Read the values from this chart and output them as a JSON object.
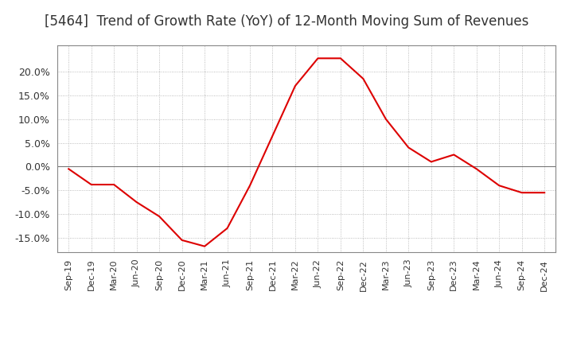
{
  "title": "[5464]  Trend of Growth Rate (YoY) of 12-Month Moving Sum of Revenues",
  "title_fontsize": 12,
  "line_color": "#dd0000",
  "background_color": "#ffffff",
  "grid_color": "#aaaaaa",
  "ylim": [
    -0.18,
    0.255
  ],
  "yticks": [
    -0.15,
    -0.1,
    -0.05,
    0.0,
    0.05,
    0.1,
    0.15,
    0.2
  ],
  "x_labels": [
    "Sep-19",
    "Dec-19",
    "Mar-20",
    "Jun-20",
    "Sep-20",
    "Dec-20",
    "Mar-21",
    "Jun-21",
    "Sep-21",
    "Dec-21",
    "Mar-22",
    "Jun-22",
    "Sep-22",
    "Dec-22",
    "Mar-23",
    "Jun-23",
    "Sep-23",
    "Dec-23",
    "Mar-24",
    "Jun-24",
    "Sep-24",
    "Dec-24"
  ],
  "y_values": [
    -0.005,
    -0.038,
    -0.038,
    -0.075,
    -0.105,
    -0.155,
    -0.168,
    -0.13,
    -0.04,
    0.065,
    0.17,
    0.228,
    0.228,
    0.185,
    0.1,
    0.04,
    0.01,
    0.025,
    -0.005,
    -0.04,
    -0.055,
    -0.055
  ]
}
